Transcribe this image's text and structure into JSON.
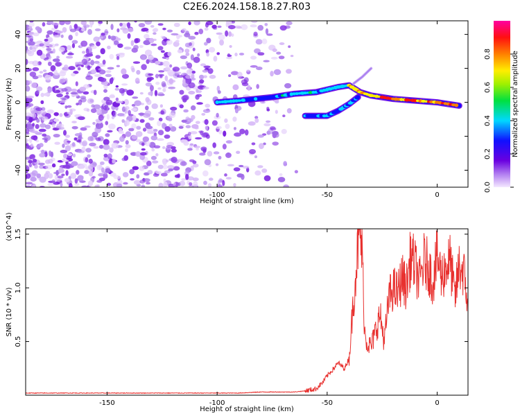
{
  "title": "C2E6.2024.158.18.27.R03",
  "colors": {
    "snr_line": "#e8312f",
    "noise_purple": "#8a2be2",
    "frame": "#000000"
  },
  "chart_data": [
    {
      "type": "heatmap",
      "name": "spectrogram",
      "title": "C2E6.2024.158.18.27.R03",
      "xlabel": "Height of straight line (km)",
      "ylabel": "Frequency (Hz)",
      "xlim": [
        -187,
        14
      ],
      "ylim": [
        -50,
        48
      ],
      "x_ticks": [
        -150,
        -100,
        -50,
        0
      ],
      "y_ticks": [
        -40,
        -20,
        0,
        20,
        40
      ],
      "colorbar": {
        "label": "Normalized spectral amplitude",
        "range": [
          0,
          1
        ],
        "ticks": [
          "0.0",
          "0.2",
          "0.4",
          "0.6",
          "0.8"
        ],
        "tick_values": [
          0.0,
          0.2,
          0.4,
          0.6,
          0.8
        ],
        "colormap": "rainbow (purple → blue → cyan → green → yellow → orange → red → magenta)"
      },
      "features": [
        {
          "name": "main branch",
          "points": [
            [
              -100,
              0
            ],
            [
              -90,
              1
            ],
            [
              -75,
              3
            ],
            [
              -65,
              5
            ],
            [
              -55,
              6
            ],
            [
              -45,
              9
            ],
            [
              -40,
              10
            ],
            [
              -35,
              6
            ],
            [
              -30,
              4
            ],
            [
              -20,
              2
            ],
            [
              -10,
              1
            ],
            [
              0,
              0
            ],
            [
              10,
              -2
            ]
          ]
        },
        {
          "name": "lower branch",
          "points": [
            [
              -60,
              -8
            ],
            [
              -50,
              -8
            ],
            [
              -45,
              -5
            ],
            [
              -40,
              -1
            ],
            [
              -36,
              3
            ]
          ]
        },
        {
          "name": "upper faint branch",
          "points": [
            [
              -38,
              11
            ],
            [
              -34,
              15
            ],
            [
              -30,
              20
            ]
          ]
        }
      ]
    },
    {
      "type": "line",
      "name": "snr",
      "xlabel": "Height of straight line (km)",
      "ylabel": "SNR (10 * v/v)",
      "y_multiplier": "(x10^4)",
      "xlim": [
        -187,
        14
      ],
      "ylim": [
        0,
        1.55
      ],
      "x_ticks": [
        -150,
        -100,
        -50,
        0
      ],
      "y_ticks": [
        0.5,
        1.0,
        1.5
      ],
      "y_tick_labels": [
        "0.5",
        "1.0",
        "1.5"
      ],
      "series": [
        {
          "x": [
            -187,
            -170,
            -150,
            -130,
            -110,
            -100,
            -90,
            -80,
            -70,
            -65,
            -60,
            -55,
            -52,
            -50,
            -47,
            -45,
            -42,
            -40,
            -38,
            -36,
            -35,
            -34,
            -33,
            -32,
            -30,
            -28,
            -26,
            -24,
            -22,
            -20,
            -18,
            -16,
            -14,
            -12,
            -10,
            -8,
            -6,
            -4,
            -2,
            0,
            2,
            4,
            6,
            8,
            10,
            12,
            14
          ],
          "y": [
            0.02,
            0.02,
            0.02,
            0.02,
            0.02,
            0.02,
            0.02,
            0.03,
            0.03,
            0.03,
            0.04,
            0.06,
            0.12,
            0.18,
            0.25,
            0.3,
            0.25,
            0.35,
            0.9,
            1.4,
            1.5,
            1.3,
            0.6,
            0.5,
            0.45,
            0.6,
            0.75,
            0.5,
            0.9,
            1.0,
            0.95,
            1.1,
            1.0,
            1.3,
            1.2,
            1.05,
            1.25,
            1.2,
            1.05,
            1.3,
            1.1,
            1.2,
            1.25,
            0.9,
            1.2,
            1.15,
            0.85
          ]
        }
      ]
    }
  ]
}
